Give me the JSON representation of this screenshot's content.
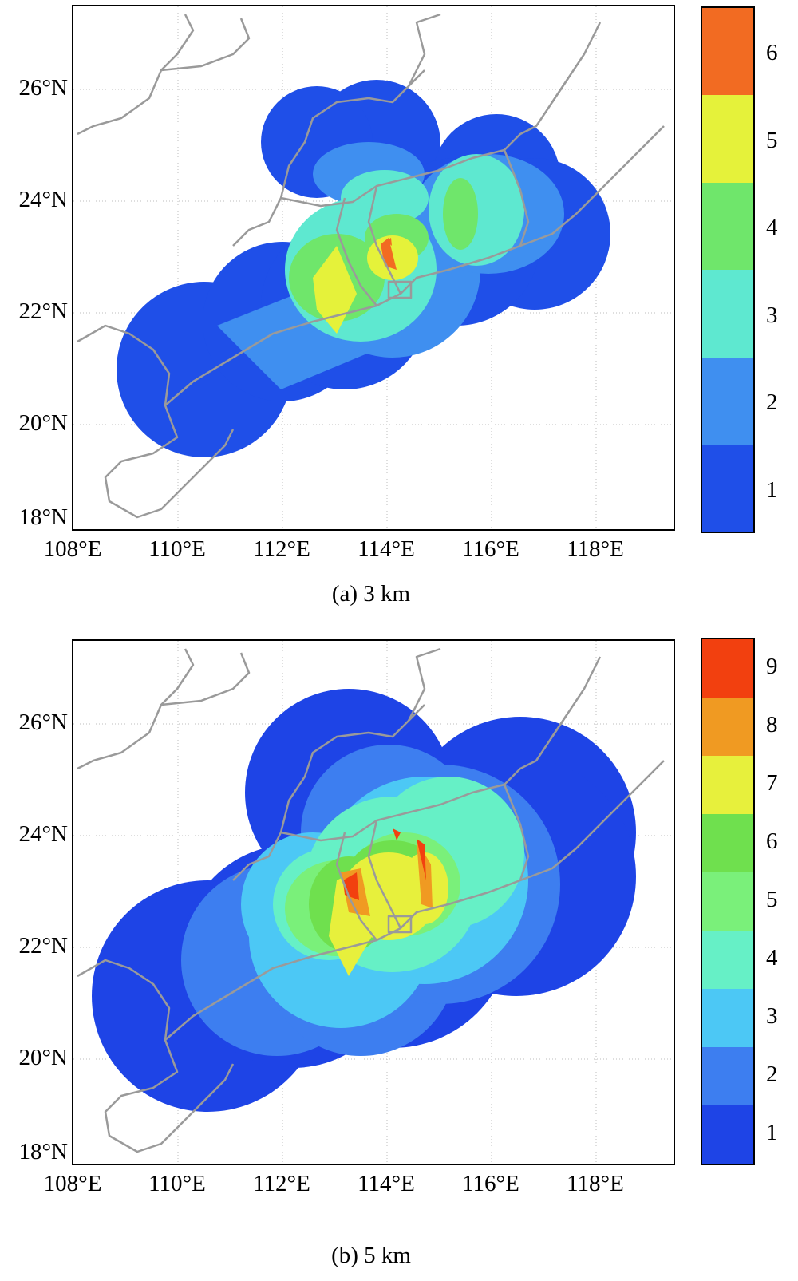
{
  "panels": [
    {
      "id": "a",
      "caption": "(a) 3 km",
      "lat_labels": [
        "26°N",
        "24°N",
        "22°N",
        "20°N",
        "18°N"
      ],
      "lon_labels": [
        "108°E",
        "110°E",
        "112°E",
        "114°E",
        "116°E",
        "118°E"
      ],
      "colorbar": {
        "labels": [
          "6",
          "5",
          "4",
          "3",
          "2",
          "1"
        ],
        "colors": [
          "#f26b22",
          "#e5f23a",
          "#6fe66b",
          "#5ee8d0",
          "#3f8ff0",
          "#1f4fe8"
        ]
      }
    },
    {
      "id": "b",
      "caption": "(b) 5 km",
      "lat_labels": [
        "26°N",
        "24°N",
        "22°N",
        "20°N",
        "18°N"
      ],
      "lon_labels": [
        "108°E",
        "110°E",
        "112°E",
        "114°E",
        "116°E",
        "118°E"
      ],
      "colorbar": {
        "labels": [
          "9",
          "8",
          "7",
          "6",
          "5",
          "4",
          "3",
          "2",
          "1"
        ],
        "colors": [
          "#f2400f",
          "#f09a22",
          "#e7f03c",
          "#6fe04e",
          "#7af07a",
          "#66f0c6",
          "#4cc8f5",
          "#3d7ef0",
          "#1e44e6"
        ]
      }
    }
  ],
  "map_extent": {
    "lon": [
      108,
      119.5
    ],
    "lat": [
      17.8,
      27.4
    ]
  }
}
